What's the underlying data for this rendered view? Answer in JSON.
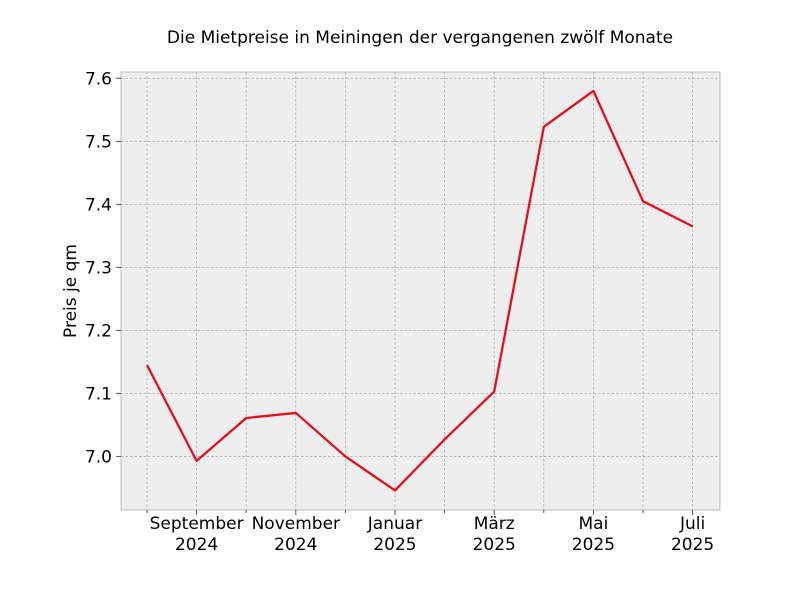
{
  "chart_data": {
    "type": "line",
    "title": "Die Mietpreise in Meiningen der vergangenen zwölf Monate",
    "xlabel": "",
    "ylabel": "Preis je qm",
    "x": [
      "2024-08",
      "2024-09",
      "2024-10",
      "2024-11",
      "2024-12",
      "2025-01",
      "2025-02",
      "2025-03",
      "2025-04",
      "2025-05",
      "2025-06",
      "2025-07"
    ],
    "series": [
      {
        "color": "#e3101e",
        "values": [
          7.145,
          6.993,
          7.061,
          7.069,
          7.0,
          6.946,
          7.027,
          7.103,
          7.523,
          7.58,
          7.405,
          7.365
        ]
      }
    ],
    "ylim": [
      6.915,
      7.61
    ],
    "yticks": [
      "7.0",
      "7.1",
      "7.2",
      "7.3",
      "7.4",
      "7.5",
      "7.6"
    ],
    "xticks": [
      {
        "month": "2024-09",
        "line1": "September",
        "line2": "2024"
      },
      {
        "month": "2024-11",
        "line1": "November",
        "line2": "2024"
      },
      {
        "month": "2025-01",
        "line1": "Januar",
        "line2": "2025"
      },
      {
        "month": "2025-03",
        "line1": "März",
        "line2": "2025"
      },
      {
        "month": "2025-05",
        "line1": "Mai",
        "line2": "2025"
      },
      {
        "month": "2025-07",
        "line1": "Juli",
        "line2": "2025"
      }
    ],
    "grid": true,
    "background_color": "#eeeeee",
    "grid_color": "#b0b0b0"
  }
}
